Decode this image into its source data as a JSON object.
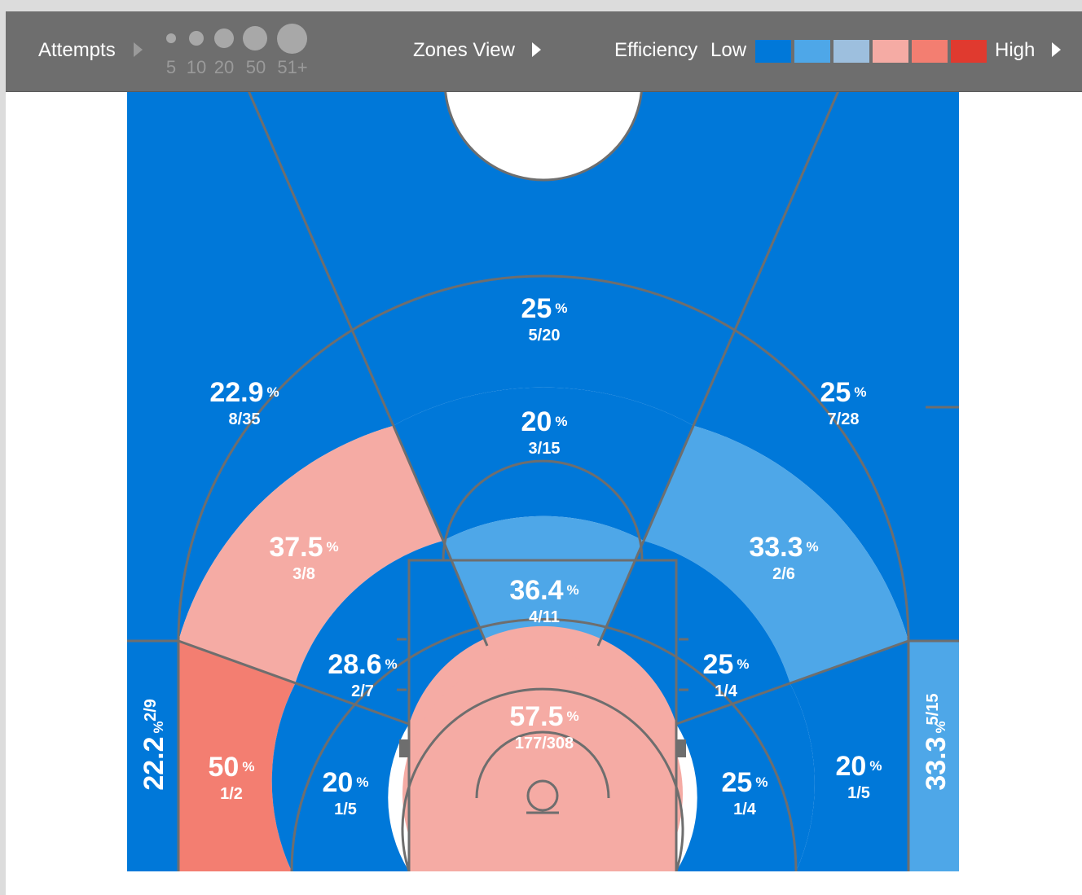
{
  "toolbar": {
    "attempts_label": "Attempts",
    "sizes": [
      "5",
      "10",
      "20",
      "50",
      "51+"
    ],
    "view_label": "Zones View",
    "efficiency_label": "Efficiency",
    "low_label": "Low",
    "high_label": "High"
  },
  "colors": {
    "scale": [
      "#0078d9",
      "#4ea7e8",
      "#9dbfde",
      "#f5aba4",
      "#f37e71",
      "#e03a2f"
    ],
    "line": "#6e6e6e",
    "toolbar_bg": "#6e6e6e"
  },
  "chart_data": {
    "type": "heatmap",
    "title": "",
    "zones": [
      {
        "id": "above-break-3-left",
        "pct": "22.9",
        "made": 8,
        "att": 35,
        "label": "8/35",
        "color_level": 0
      },
      {
        "id": "above-break-3-center",
        "pct": "25",
        "made": 5,
        "att": 20,
        "label": "5/20",
        "color_level": 0
      },
      {
        "id": "above-break-3-right",
        "pct": "25",
        "made": 7,
        "att": 28,
        "label": "7/28",
        "color_level": 0
      },
      {
        "id": "long-mid-center",
        "pct": "20",
        "made": 3,
        "att": 15,
        "label": "3/15",
        "color_level": 0
      },
      {
        "id": "long-mid-left-wing",
        "pct": "37.5",
        "made": 3,
        "att": 8,
        "label": "3/8",
        "color_level": 3
      },
      {
        "id": "long-mid-right-wing",
        "pct": "33.3",
        "made": 2,
        "att": 6,
        "label": "2/6",
        "color_level": 1
      },
      {
        "id": "paint-non-ra",
        "pct": "36.4",
        "made": 4,
        "att": 11,
        "label": "4/11",
        "color_level": 1
      },
      {
        "id": "short-mid-left",
        "pct": "28.6",
        "made": 2,
        "att": 7,
        "label": "2/7",
        "color_level": 0
      },
      {
        "id": "short-mid-right",
        "pct": "25",
        "made": 1,
        "att": 4,
        "label": "1/4",
        "color_level": 0
      },
      {
        "id": "restricted-area",
        "pct": "57.5",
        "made": 177,
        "att": 308,
        "label": "177/308",
        "color_level": 3
      },
      {
        "id": "long-mid-left-baseline",
        "pct": "50",
        "made": 1,
        "att": 2,
        "label": "1/2",
        "color_level": 4
      },
      {
        "id": "short-mid-left-baseline",
        "pct": "20",
        "made": 1,
        "att": 5,
        "label": "1/5",
        "color_level": 0
      },
      {
        "id": "short-mid-right-baseline",
        "pct": "25",
        "made": 1,
        "att": 4,
        "label": "1/4",
        "color_level": 0
      },
      {
        "id": "long-mid-right-baseline",
        "pct": "20",
        "made": 1,
        "att": 5,
        "label": "1/5",
        "color_level": 0
      },
      {
        "id": "corner-3-left",
        "pct": "22.2",
        "made": 2,
        "att": 9,
        "label": "2/9",
        "color_level": 0
      },
      {
        "id": "corner-3-right",
        "pct": "33.3",
        "made": 5,
        "att": 15,
        "label": "5/15",
        "color_level": 1
      }
    ]
  }
}
